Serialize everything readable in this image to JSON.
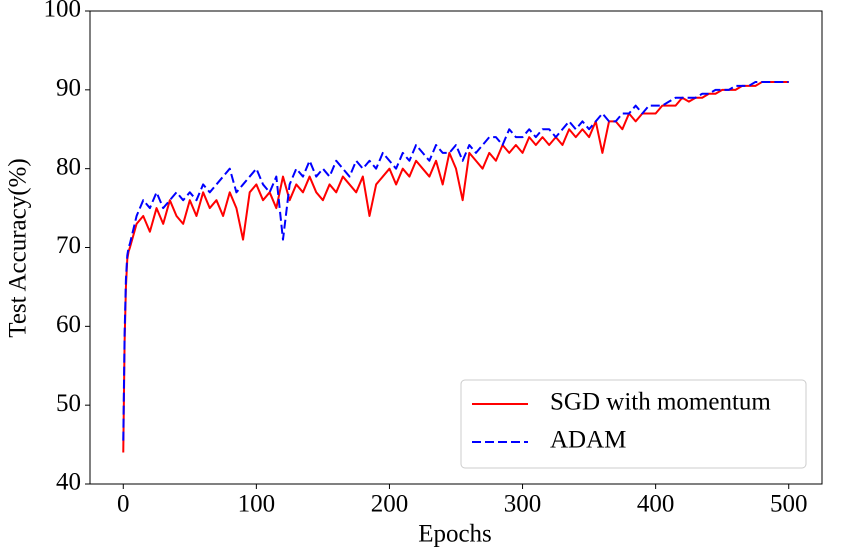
{
  "chart_data": {
    "type": "line",
    "xlabel": "Epochs",
    "ylabel": "Test Accuracy(%)",
    "x": [
      0,
      1,
      2,
      3,
      4,
      5,
      10,
      15,
      20,
      25,
      30,
      35,
      40,
      45,
      50,
      55,
      60,
      65,
      70,
      75,
      80,
      85,
      90,
      95,
      100,
      105,
      110,
      115,
      120,
      125,
      130,
      135,
      140,
      145,
      150,
      155,
      160,
      165,
      170,
      175,
      180,
      185,
      190,
      195,
      200,
      205,
      210,
      215,
      220,
      225,
      230,
      235,
      240,
      245,
      250,
      255,
      260,
      265,
      270,
      275,
      280,
      285,
      290,
      295,
      300,
      305,
      310,
      315,
      320,
      325,
      330,
      335,
      340,
      345,
      350,
      355,
      360,
      365,
      370,
      375,
      380,
      385,
      390,
      395,
      400,
      405,
      410,
      415,
      420,
      425,
      430,
      435,
      440,
      445,
      450,
      455,
      460,
      465,
      470,
      475,
      480,
      485,
      490,
      495,
      500
    ],
    "series": [
      {
        "name": "SGD with momentum",
        "color": "#ff0000",
        "dash": "solid",
        "values": [
          44,
          58,
          65,
          68.5,
          69.5,
          70,
          73,
          74,
          72,
          75,
          73,
          76,
          74,
          73,
          76,
          74,
          77,
          75,
          76,
          74,
          77,
          75,
          71,
          77,
          78,
          76,
          77,
          75,
          79,
          76,
          78,
          77,
          79,
          77,
          76,
          78,
          77,
          79,
          78,
          77,
          79,
          74,
          78,
          79,
          80,
          78,
          80,
          79,
          81,
          80,
          79,
          81,
          78,
          82,
          80,
          76,
          82,
          81,
          80,
          82,
          81,
          83,
          82,
          83,
          82,
          84,
          83,
          84,
          83,
          84,
          83,
          85,
          84,
          85,
          84,
          86,
          82,
          86,
          86,
          85,
          87,
          86,
          87,
          87,
          87,
          88,
          88,
          88,
          89,
          88.5,
          89,
          89,
          89.5,
          89.5,
          90,
          90,
          90,
          90.5,
          90.5,
          90.5,
          91,
          91,
          91,
          91,
          91
        ]
      },
      {
        "name": "ADAM",
        "color": "#0000ff",
        "dash": "dashed",
        "values": [
          45.5,
          59,
          66,
          69,
          70,
          70.5,
          74,
          76,
          75,
          77,
          75,
          76,
          77,
          76,
          77,
          76,
          78,
          77,
          78,
          79,
          80,
          77,
          78,
          79,
          80,
          78,
          77,
          79,
          71,
          78,
          80,
          79,
          81,
          79,
          80,
          79,
          81,
          80,
          79,
          81,
          80,
          81,
          80,
          82,
          81,
          80,
          82,
          81,
          83,
          82,
          81,
          83,
          82,
          82,
          83,
          81,
          83,
          82,
          83,
          84,
          84,
          83,
          85,
          84,
          84,
          85,
          84,
          85,
          85,
          84,
          85,
          86,
          85,
          86,
          85,
          86,
          87,
          86,
          86,
          87,
          87,
          88,
          87,
          88,
          88,
          88,
          88.5,
          89,
          89,
          89,
          89,
          89.5,
          89.5,
          90,
          90,
          90,
          90.5,
          90.5,
          90.5,
          91,
          91,
          91,
          91,
          91,
          91
        ]
      }
    ],
    "xlim": [
      -25,
      525
    ],
    "ylim": [
      40,
      100
    ],
    "xticks": [
      0,
      100,
      200,
      300,
      400,
      500
    ],
    "yticks": [
      40,
      50,
      60,
      70,
      80,
      90,
      100
    ],
    "grid": false,
    "legend": "lower right"
  }
}
